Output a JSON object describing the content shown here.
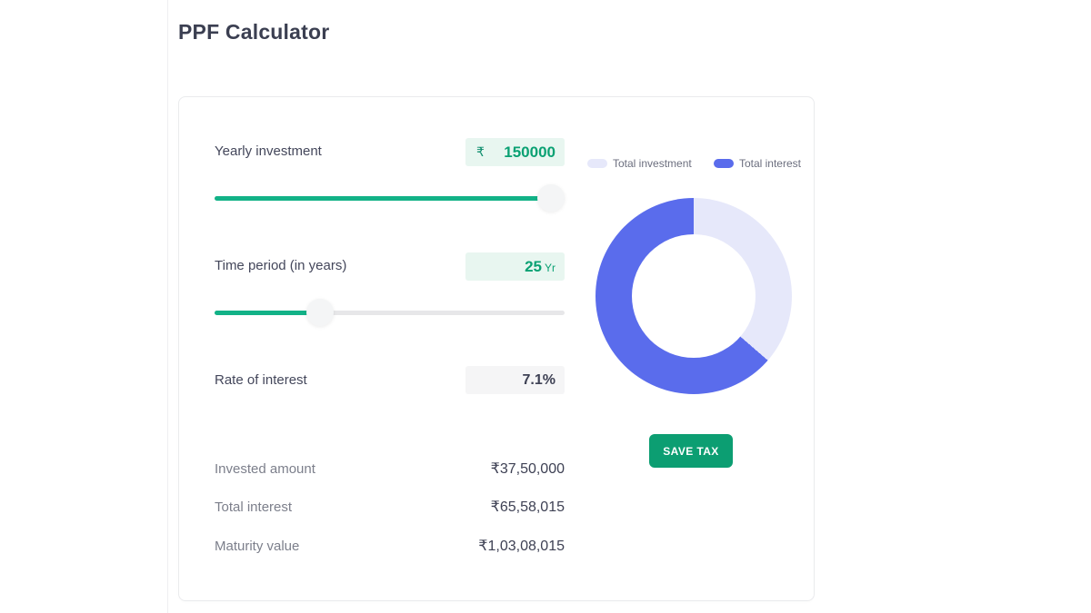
{
  "page": {
    "title": "PPF Calculator"
  },
  "calculator": {
    "yearly_investment": {
      "label": "Yearly investment",
      "currency_symbol": "₹",
      "value": "150000",
      "slider_fill_percent": 96,
      "slider_thumb_percent": 96
    },
    "time_period": {
      "label": "Time period (in years)",
      "value": "25",
      "unit": "Yr",
      "slider_fill_percent": 29,
      "slider_thumb_percent": 30
    },
    "rate_of_interest": {
      "label": "Rate of interest",
      "value": "7.1%"
    },
    "results": [
      {
        "label": "Invested amount",
        "value": "₹37,50,000"
      },
      {
        "label": "Total interest",
        "value": "₹65,58,015"
      },
      {
        "label": "Maturity value",
        "value": "₹1,03,08,015"
      }
    ],
    "save_tax_button": "SAVE TAX"
  },
  "chart_data": {
    "type": "pie",
    "subtype": "donut",
    "start_angle_deg": 0,
    "direction": "clockwise",
    "segments": [
      {
        "label": "Total investment",
        "value": 3750000,
        "color": "#e6e8fa"
      },
      {
        "label": "Total interest",
        "value": 6558015,
        "color": "#5a6cec"
      }
    ],
    "legend_position": "top"
  },
  "colors": {
    "accent_green": "#0c9e72",
    "slider_green": "#12b287",
    "value_green": "#0aa173",
    "mint_background": "#e8f6f0",
    "gray_background": "#f5f5f6",
    "donut_blue": "#5a6cec",
    "donut_lavender": "#e6e8fa",
    "text_dark": "#3e4154",
    "text_muted": "#7c7f8b"
  }
}
